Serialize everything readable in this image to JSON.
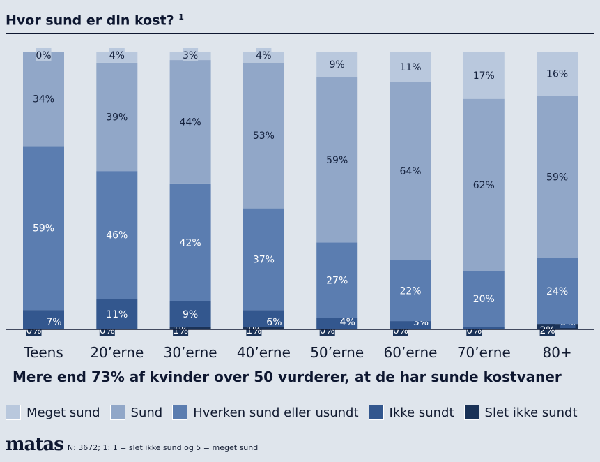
{
  "chart_data": {
    "type": "bar",
    "stacked": true,
    "title": "Hvor sund er din kost?",
    "title_sup": "1",
    "subtitle": "Mere end 73% af kvinder over 50 vurderer, at de har sunde kostvaner",
    "categories": [
      "Teens",
      "20’erne",
      "30’erne",
      "40’erne",
      "50’erne",
      "60’erne",
      "70’erne",
      "80+"
    ],
    "series": [
      {
        "name": "Slet ikke sundt",
        "color": "#1a3257",
        "values": [
          0,
          0,
          1,
          1,
          0,
          0,
          0,
          2
        ]
      },
      {
        "name": "Ikke sundt",
        "color": "#33578e",
        "values": [
          7,
          11,
          9,
          6,
          4,
          3,
          1,
          0
        ]
      },
      {
        "name": "Hverken sund eller usundt",
        "color": "#5b7db0",
        "values": [
          59,
          46,
          42,
          37,
          27,
          22,
          20,
          24
        ]
      },
      {
        "name": "Sund",
        "color": "#91a7c8",
        "values": [
          34,
          39,
          44,
          53,
          59,
          64,
          62,
          59
        ]
      },
      {
        "name": "Meget sund",
        "color": "#b9c8dd",
        "values": [
          0,
          4,
          3,
          4,
          9,
          11,
          17,
          16
        ]
      }
    ],
    "ylim": [
      0,
      100
    ],
    "unit": "%",
    "grid": false,
    "legend": "bottom"
  },
  "legend_order": [
    "Meget sund",
    "Sund",
    "Hverken sund eller usundt",
    "Ikke sundt",
    "Slet ikke sundt"
  ],
  "footer": {
    "logo": "matas",
    "note": "N: 3672; 1: 1 = slet ikke sund og 5 = meget sund"
  }
}
